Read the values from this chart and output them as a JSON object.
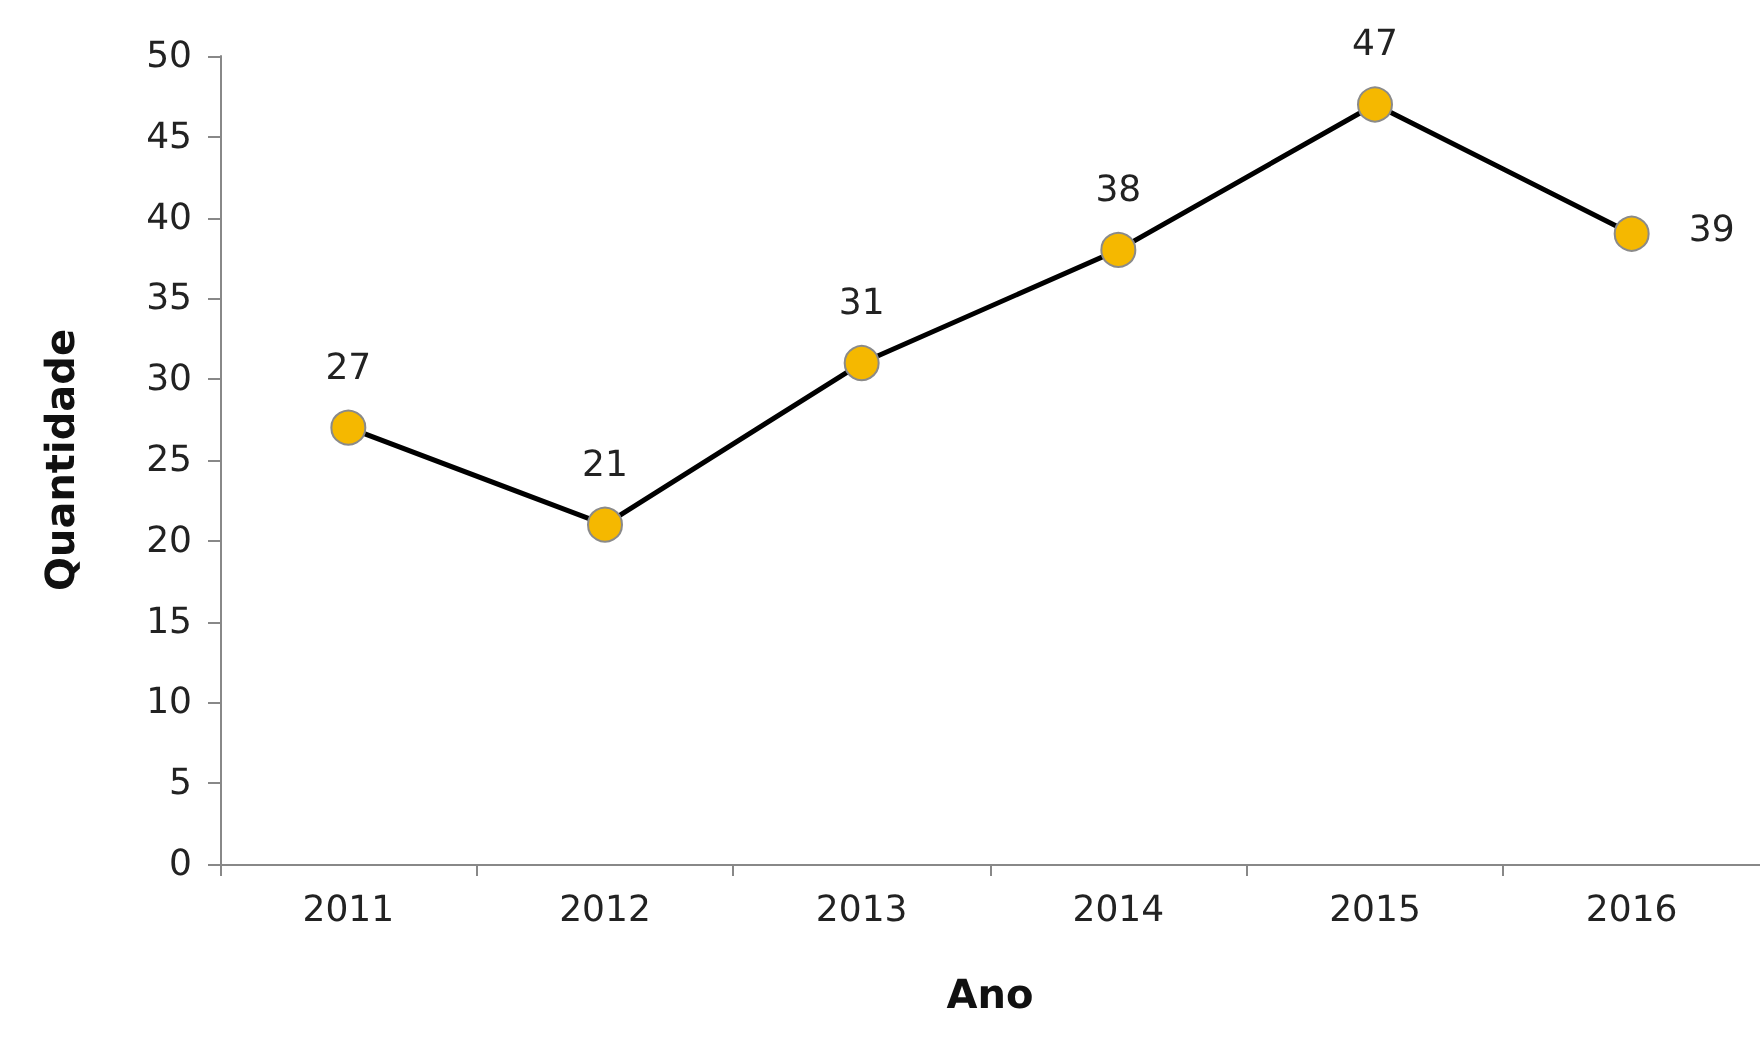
{
  "chart_data": {
    "type": "line",
    "xlabel": "Ano",
    "ylabel": "Quantidade",
    "categories": [
      "2011",
      "2012",
      "2013",
      "2014",
      "2015",
      "2016"
    ],
    "series": [
      {
        "color": "#000000",
        "values": [
          27,
          21,
          31,
          38,
          47,
          39
        ]
      }
    ],
    "marker": "circle",
    "data_labels": true,
    "grid": false,
    "ylim": [
      0,
      50
    ],
    "yticks": [
      0,
      5,
      10,
      15,
      20,
      25,
      30,
      35,
      40,
      45,
      50
    ]
  }
}
